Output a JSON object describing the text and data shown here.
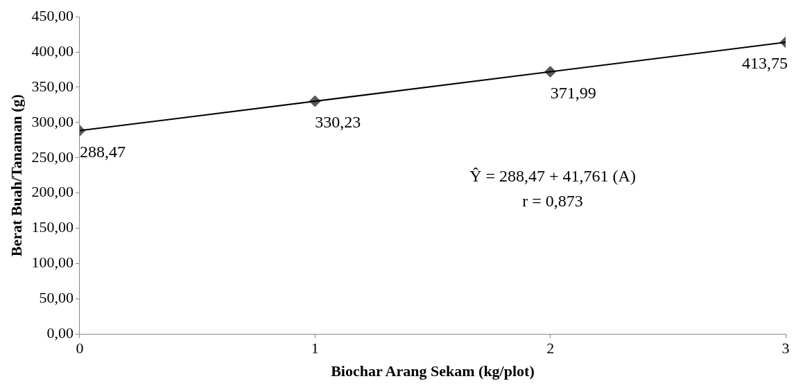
{
  "chart_data": {
    "type": "scatter",
    "xlabel": "Biochar Arang Sekam (kg/plot)",
    "ylabel": "Berat Buah/Tanaman (g)",
    "xlim": [
      0,
      3
    ],
    "xticks": [
      0,
      1,
      2,
      3
    ],
    "ylim": [
      0,
      450
    ],
    "yticks": [
      {
        "value": 0,
        "label": "0,00"
      },
      {
        "value": 50,
        "label": "50,00"
      },
      {
        "value": 100,
        "label": "100,00"
      },
      {
        "value": 150,
        "label": "150,00"
      },
      {
        "value": 200,
        "label": "200,00"
      },
      {
        "value": 250,
        "label": "250,00"
      },
      {
        "value": 300,
        "label": "300,00"
      },
      {
        "value": 350,
        "label": "350,00"
      },
      {
        "value": 400,
        "label": "400,00"
      },
      {
        "value": 450,
        "label": "450,00"
      }
    ],
    "series": [
      {
        "type": "line",
        "x": [
          0,
          3
        ],
        "values": [
          288.47,
          413.75
        ],
        "color": "#000000",
        "marker": "none",
        "line_style": "solid"
      },
      {
        "x": [
          0,
          1,
          2,
          3
        ],
        "values": [
          288.47,
          330.23,
          371.99,
          413.75
        ],
        "color": "#595959",
        "marker": "diamond",
        "value_labels": [
          "288,47",
          "330,23",
          "371,99",
          "413,75"
        ]
      }
    ],
    "annotations": [
      "Ŷ = 288,47 + 41,761 (A)",
      "r = 0,873"
    ]
  }
}
